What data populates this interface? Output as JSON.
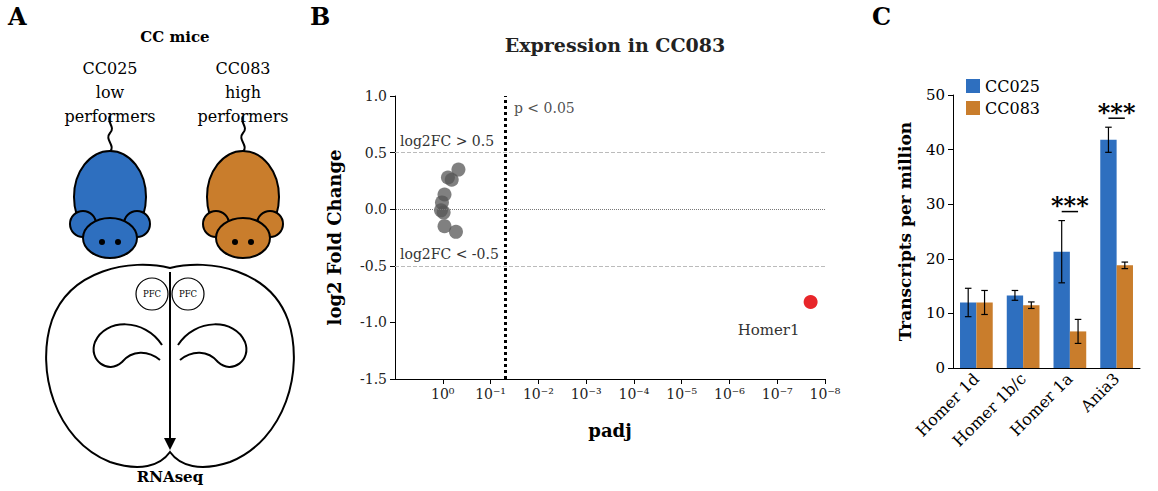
{
  "panel_letters": [
    "A",
    "B",
    "C"
  ],
  "diagram": {
    "title": "CC mice",
    "groups": [
      {
        "strain": "CC025",
        "lines": [
          "low",
          "performers"
        ],
        "color": "#2e6fbf"
      },
      {
        "strain": "CC083",
        "lines": [
          "high",
          "performers"
        ],
        "color": "#c97d2c"
      }
    ],
    "regions": [
      "PFC",
      "PFC"
    ],
    "method": "RNAseq"
  },
  "chart_data": [
    {
      "type": "scatter",
      "title": "Expression in CC083",
      "x_label": "padj",
      "y_label": "log2 Fold Change",
      "log": "x",
      "grid": false,
      "xlim": [
        10,
        1e-08
      ],
      "xticks": [
        {
          "value": 1,
          "label": "10⁰"
        },
        {
          "value": 0.1,
          "label": "10⁻¹"
        },
        {
          "value": 0.01,
          "label": "10⁻²"
        },
        {
          "value": 0.001,
          "label": "10⁻³"
        },
        {
          "value": 0.0001,
          "label": "10⁻⁴"
        },
        {
          "value": 1e-05,
          "label": "10⁻⁵"
        },
        {
          "value": 1e-06,
          "label": "10⁻⁶"
        },
        {
          "value": 1e-07,
          "label": "10⁻⁷"
        },
        {
          "value": 1e-08,
          "label": "10⁻⁸"
        }
      ],
      "ylim": [
        -1.5,
        1
      ],
      "yticks": [
        -1.5,
        {
          "value": -1,
          "label": "-1.0"
        },
        -0.5,
        {
          "value": 0,
          "label": "0.0"
        },
        0.5,
        {
          "value": 1,
          "label": "1.0"
        }
      ],
      "series": [
        {
          "color": "#555555",
          "x": [
            0.47,
            0.78,
            0.65,
            0.92,
            1.04,
            1.09,
            0.96,
            0.92,
            0.53
          ],
          "values": [
            0.35,
            0.28,
            0.26,
            0.13,
            0.06,
            -0.01,
            -0.03,
            -0.15,
            -0.2
          ]
        },
        {
          "name": "Homer1",
          "color": "#e8262a",
          "x": [
            2e-08
          ],
          "values": [
            -0.82
          ]
        }
      ],
      "reference_lines": [
        {
          "x": 0.05,
          "label": "p < 0.05"
        },
        {
          "y": 0.5,
          "label": "log2FC > 0.5"
        },
        {
          "y": -0.5,
          "label": "log2FC < -0.5"
        },
        {
          "y": 0
        }
      ]
    },
    {
      "type": "bar",
      "y_label": "Transcripts per million",
      "grid": false,
      "legend": "top-left",
      "categories": [
        "Homer 1d",
        "Homer 1b/c",
        "Homer 1a",
        "Ania3"
      ],
      "ylim": [
        0,
        50
      ],
      "yticks": [
        0,
        10,
        20,
        30,
        40,
        50
      ],
      "series": [
        {
          "name": "CC025",
          "color": "#2e6fbf",
          "values": [
            12,
            13.3,
            21.3,
            41.8
          ],
          "errors": [
            2.6,
            0.9,
            5.7,
            2.3
          ]
        },
        {
          "name": "CC083",
          "color": "#c97d2c",
          "values": [
            12,
            11.5,
            6.7,
            18.8
          ],
          "errors": [
            2.2,
            0.6,
            2.2,
            0.6
          ]
        }
      ],
      "significance": [
        {
          "category": "Homer 1a",
          "label": "***"
        },
        {
          "category": "Ania3",
          "label": "***"
        }
      ]
    }
  ]
}
